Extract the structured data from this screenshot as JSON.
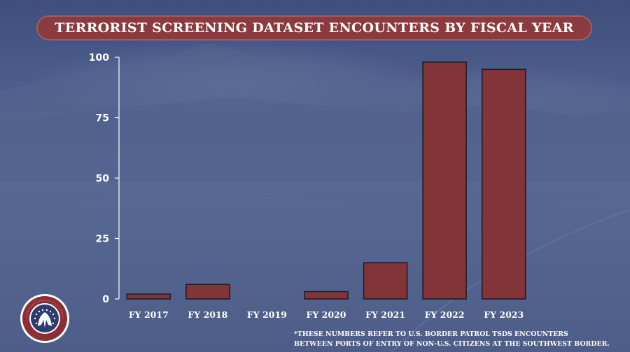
{
  "header": {
    "title": "TERRORIST SCREENING DATASET ENCOUNTERS BY FISCAL YEAR"
  },
  "footnote": {
    "line1": "*THESE NUMBERS REFER TO U.S. BORDER PATROL TSDS ENCOUNTERS",
    "line2": "BETWEEN PORTS OF ENTRY OF NON-U.S. CITIZENS AT THE SOUTHWEST BORDER."
  },
  "logo": {
    "text_top": "HOMELAND SECURITY",
    "text_bottom": "REPUBLICANS",
    "colors": {
      "ring": "#8b2f35",
      "field": "#2e3d6e",
      "trim": "#ffffff"
    }
  },
  "colors": {
    "banner": "#8b3a3e",
    "bar_fill": "#833438",
    "bar_outline": "#1e1e26",
    "text": "#ffffff"
  },
  "chart_data": {
    "type": "bar",
    "title": "TERRORIST SCREENING DATASET ENCOUNTERS BY FISCAL YEAR",
    "categories": [
      "FY 2017",
      "FY 2018",
      "FY 2019",
      "FY 2020",
      "FY 2021",
      "FY 2022",
      "FY 2023"
    ],
    "values": [
      2,
      6,
      0,
      3,
      15,
      98,
      95
    ],
    "yticks": [
      0,
      25,
      50,
      75,
      100
    ],
    "ylim": [
      0,
      100
    ],
    "xlabel": "",
    "ylabel": "",
    "grid": false,
    "legend": "none"
  }
}
